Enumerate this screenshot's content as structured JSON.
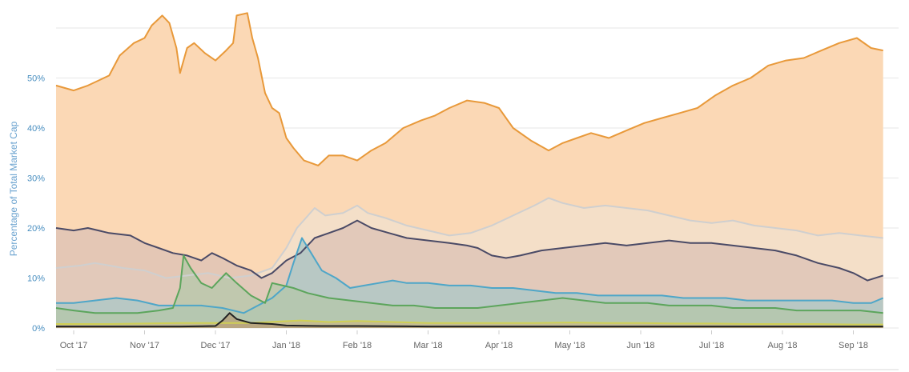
{
  "chart_data": {
    "type": "area",
    "title": "",
    "xlabel": "",
    "ylabel": "Percentage of Total Market Cap",
    "ylim": [
      0,
      62
    ],
    "grid": true,
    "legend": "none",
    "x_ticks": [
      "Oct '17",
      "Nov '17",
      "Dec '17",
      "Jan '18",
      "Feb '18",
      "Mar '18",
      "Apr '18",
      "May '18",
      "Jun '18",
      "Jul '18",
      "Aug '18",
      "Sep '18"
    ],
    "y_ticks": [
      {
        "value": 0,
        "label": "0%"
      },
      {
        "value": 10,
        "label": "10%"
      },
      {
        "value": 20,
        "label": "20%"
      },
      {
        "value": 30,
        "label": "30%"
      },
      {
        "value": 40,
        "label": "40%"
      },
      {
        "value": 50,
        "label": "50%"
      }
    ],
    "x_index_range": [
      0,
      12
    ],
    "series": [
      {
        "color": "#e8993a",
        "fill": "#fbd8b5",
        "points": [
          [
            -0.25,
            48.5
          ],
          [
            0.0,
            47.5
          ],
          [
            0.2,
            48.5
          ],
          [
            0.5,
            50.5
          ],
          [
            0.65,
            54.5
          ],
          [
            0.85,
            57.0
          ],
          [
            1.0,
            58.0
          ],
          [
            1.1,
            60.5
          ],
          [
            1.25,
            62.5
          ],
          [
            1.35,
            61.0
          ],
          [
            1.45,
            56.0
          ],
          [
            1.5,
            51.0
          ],
          [
            1.6,
            56.0
          ],
          [
            1.7,
            57.0
          ],
          [
            1.85,
            55.0
          ],
          [
            2.0,
            53.5
          ],
          [
            2.15,
            55.5
          ],
          [
            2.25,
            57.0
          ],
          [
            2.3,
            62.5
          ],
          [
            2.45,
            63.0
          ],
          [
            2.52,
            58.0
          ],
          [
            2.6,
            54.0
          ],
          [
            2.7,
            47.0
          ],
          [
            2.8,
            44.0
          ],
          [
            2.9,
            43.0
          ],
          [
            3.0,
            38.0
          ],
          [
            3.1,
            36.0
          ],
          [
            3.25,
            33.5
          ],
          [
            3.45,
            32.5
          ],
          [
            3.6,
            34.5
          ],
          [
            3.8,
            34.5
          ],
          [
            4.0,
            33.5
          ],
          [
            4.2,
            35.5
          ],
          [
            4.4,
            37.0
          ],
          [
            4.65,
            40.0
          ],
          [
            4.9,
            41.5
          ],
          [
            5.1,
            42.5
          ],
          [
            5.3,
            44.0
          ],
          [
            5.55,
            45.5
          ],
          [
            5.8,
            45.0
          ],
          [
            6.0,
            44.0
          ],
          [
            6.2,
            40.0
          ],
          [
            6.45,
            37.5
          ],
          [
            6.7,
            35.5
          ],
          [
            6.9,
            37.0
          ],
          [
            7.1,
            38.0
          ],
          [
            7.3,
            39.0
          ],
          [
            7.55,
            38.0
          ],
          [
            7.8,
            39.5
          ],
          [
            8.05,
            41.0
          ],
          [
            8.3,
            42.0
          ],
          [
            8.55,
            43.0
          ],
          [
            8.8,
            44.0
          ],
          [
            9.05,
            46.5
          ],
          [
            9.3,
            48.5
          ],
          [
            9.55,
            50.0
          ],
          [
            9.8,
            52.5
          ],
          [
            10.05,
            53.5
          ],
          [
            10.3,
            54.0
          ],
          [
            10.55,
            55.5
          ],
          [
            10.8,
            57.0
          ],
          [
            11.05,
            58.0
          ],
          [
            11.25,
            56.0
          ],
          [
            11.42,
            55.5
          ]
        ]
      },
      {
        "color": "#cfcfcf",
        "fill": "#f1e1cf",
        "points": [
          [
            -0.25,
            12.0
          ],
          [
            0.1,
            12.5
          ],
          [
            0.3,
            13.0
          ],
          [
            0.5,
            12.5
          ],
          [
            0.7,
            12.0
          ],
          [
            1.0,
            11.5
          ],
          [
            1.3,
            10.0
          ],
          [
            1.6,
            10.5
          ],
          [
            1.9,
            11.0
          ],
          [
            2.2,
            10.0
          ],
          [
            2.5,
            10.5
          ],
          [
            2.8,
            12.0
          ],
          [
            3.0,
            16.0
          ],
          [
            3.15,
            20.0
          ],
          [
            3.4,
            24.0
          ],
          [
            3.55,
            22.5
          ],
          [
            3.8,
            23.0
          ],
          [
            4.0,
            24.5
          ],
          [
            4.15,
            23.0
          ],
          [
            4.4,
            22.0
          ],
          [
            4.7,
            20.5
          ],
          [
            5.0,
            19.5
          ],
          [
            5.3,
            18.5
          ],
          [
            5.6,
            19.0
          ],
          [
            5.9,
            20.5
          ],
          [
            6.2,
            22.5
          ],
          [
            6.5,
            24.5
          ],
          [
            6.7,
            26.0
          ],
          [
            6.9,
            25.0
          ],
          [
            7.2,
            24.0
          ],
          [
            7.5,
            24.5
          ],
          [
            7.8,
            24.0
          ],
          [
            8.1,
            23.5
          ],
          [
            8.4,
            22.5
          ],
          [
            8.7,
            21.5
          ],
          [
            9.0,
            21.0
          ],
          [
            9.3,
            21.5
          ],
          [
            9.6,
            20.5
          ],
          [
            9.9,
            20.0
          ],
          [
            10.2,
            19.5
          ],
          [
            10.5,
            18.5
          ],
          [
            10.8,
            19.0
          ],
          [
            11.1,
            18.5
          ],
          [
            11.42,
            18.0
          ]
        ]
      },
      {
        "color": "#4a4a66",
        "fill": "#dcc1b6",
        "points": [
          [
            -0.25,
            20.0
          ],
          [
            0.0,
            19.5
          ],
          [
            0.2,
            20.0
          ],
          [
            0.5,
            19.0
          ],
          [
            0.8,
            18.5
          ],
          [
            1.0,
            17.0
          ],
          [
            1.2,
            16.0
          ],
          [
            1.4,
            15.0
          ],
          [
            1.6,
            14.5
          ],
          [
            1.8,
            13.5
          ],
          [
            1.95,
            15.0
          ],
          [
            2.1,
            14.0
          ],
          [
            2.3,
            12.5
          ],
          [
            2.5,
            11.5
          ],
          [
            2.65,
            10.0
          ],
          [
            2.8,
            11.0
          ],
          [
            3.0,
            13.5
          ],
          [
            3.2,
            15.0
          ],
          [
            3.4,
            18.0
          ],
          [
            3.6,
            19.0
          ],
          [
            3.8,
            20.0
          ],
          [
            4.0,
            21.5
          ],
          [
            4.2,
            20.0
          ],
          [
            4.45,
            19.0
          ],
          [
            4.7,
            18.0
          ],
          [
            5.0,
            17.5
          ],
          [
            5.3,
            17.0
          ],
          [
            5.55,
            16.5
          ],
          [
            5.7,
            16.0
          ],
          [
            5.9,
            14.5
          ],
          [
            6.1,
            14.0
          ],
          [
            6.3,
            14.5
          ],
          [
            6.6,
            15.5
          ],
          [
            6.9,
            16.0
          ],
          [
            7.2,
            16.5
          ],
          [
            7.5,
            17.0
          ],
          [
            7.8,
            16.5
          ],
          [
            8.1,
            17.0
          ],
          [
            8.4,
            17.5
          ],
          [
            8.7,
            17.0
          ],
          [
            9.0,
            17.0
          ],
          [
            9.3,
            16.5
          ],
          [
            9.6,
            16.0
          ],
          [
            9.9,
            15.5
          ],
          [
            10.2,
            14.5
          ],
          [
            10.5,
            13.0
          ],
          [
            10.8,
            12.0
          ],
          [
            11.0,
            11.0
          ],
          [
            11.2,
            9.5
          ],
          [
            11.42,
            10.5
          ]
        ]
      },
      {
        "color": "#4ea6c8",
        "fill": "#a9c7c7",
        "points": [
          [
            -0.25,
            5.0
          ],
          [
            0.0,
            5.0
          ],
          [
            0.3,
            5.5
          ],
          [
            0.6,
            6.0
          ],
          [
            0.9,
            5.5
          ],
          [
            1.2,
            4.5
          ],
          [
            1.5,
            4.5
          ],
          [
            1.8,
            4.5
          ],
          [
            2.1,
            4.0
          ],
          [
            2.4,
            3.0
          ],
          [
            2.6,
            4.5
          ],
          [
            2.8,
            6.0
          ],
          [
            3.0,
            8.5
          ],
          [
            3.1,
            13.0
          ],
          [
            3.22,
            18.0
          ],
          [
            3.35,
            15.0
          ],
          [
            3.5,
            11.5
          ],
          [
            3.7,
            10.0
          ],
          [
            3.9,
            8.0
          ],
          [
            4.1,
            8.5
          ],
          [
            4.3,
            9.0
          ],
          [
            4.5,
            9.5
          ],
          [
            4.7,
            9.0
          ],
          [
            5.0,
            9.0
          ],
          [
            5.3,
            8.5
          ],
          [
            5.6,
            8.5
          ],
          [
            5.9,
            8.0
          ],
          [
            6.2,
            8.0
          ],
          [
            6.5,
            7.5
          ],
          [
            6.8,
            7.0
          ],
          [
            7.1,
            7.0
          ],
          [
            7.4,
            6.5
          ],
          [
            7.7,
            6.5
          ],
          [
            8.0,
            6.5
          ],
          [
            8.3,
            6.5
          ],
          [
            8.6,
            6.0
          ],
          [
            8.9,
            6.0
          ],
          [
            9.2,
            6.0
          ],
          [
            9.5,
            5.5
          ],
          [
            9.8,
            5.5
          ],
          [
            10.1,
            5.5
          ],
          [
            10.4,
            5.5
          ],
          [
            10.7,
            5.5
          ],
          [
            11.0,
            5.0
          ],
          [
            11.25,
            5.0
          ],
          [
            11.42,
            6.0
          ]
        ]
      },
      {
        "color": "#5ca55c",
        "fill": "#b4c7a9",
        "points": [
          [
            -0.25,
            4.0
          ],
          [
            0.0,
            3.5
          ],
          [
            0.3,
            3.0
          ],
          [
            0.6,
            3.0
          ],
          [
            0.9,
            3.0
          ],
          [
            1.2,
            3.5
          ],
          [
            1.4,
            4.0
          ],
          [
            1.5,
            8.0
          ],
          [
            1.55,
            14.5
          ],
          [
            1.65,
            12.0
          ],
          [
            1.8,
            9.0
          ],
          [
            1.95,
            8.0
          ],
          [
            2.05,
            9.5
          ],
          [
            2.15,
            11.0
          ],
          [
            2.3,
            9.0
          ],
          [
            2.5,
            6.5
          ],
          [
            2.7,
            5.0
          ],
          [
            2.8,
            9.0
          ],
          [
            2.95,
            8.5
          ],
          [
            3.1,
            8.0
          ],
          [
            3.3,
            7.0
          ],
          [
            3.6,
            6.0
          ],
          [
            3.9,
            5.5
          ],
          [
            4.2,
            5.0
          ],
          [
            4.5,
            4.5
          ],
          [
            4.8,
            4.5
          ],
          [
            5.1,
            4.0
          ],
          [
            5.4,
            4.0
          ],
          [
            5.7,
            4.0
          ],
          [
            6.0,
            4.5
          ],
          [
            6.3,
            5.0
          ],
          [
            6.6,
            5.5
          ],
          [
            6.9,
            6.0
          ],
          [
            7.2,
            5.5
          ],
          [
            7.5,
            5.0
          ],
          [
            7.8,
            5.0
          ],
          [
            8.1,
            5.0
          ],
          [
            8.4,
            4.5
          ],
          [
            8.7,
            4.5
          ],
          [
            9.0,
            4.5
          ],
          [
            9.3,
            4.0
          ],
          [
            9.6,
            4.0
          ],
          [
            9.9,
            4.0
          ],
          [
            10.2,
            3.5
          ],
          [
            10.5,
            3.5
          ],
          [
            10.8,
            3.5
          ],
          [
            11.1,
            3.5
          ],
          [
            11.42,
            3.0
          ]
        ]
      },
      {
        "color": "#cfcf55",
        "fill": "#c8b88a",
        "points": [
          [
            -0.25,
            0.8
          ],
          [
            0.0,
            0.8
          ],
          [
            0.5,
            0.8
          ],
          [
            1.0,
            0.9
          ],
          [
            1.5,
            1.0
          ],
          [
            2.0,
            1.0
          ],
          [
            2.5,
            1.0
          ],
          [
            2.9,
            1.3
          ],
          [
            3.2,
            1.5
          ],
          [
            3.6,
            1.2
          ],
          [
            4.0,
            1.4
          ],
          [
            4.5,
            1.2
          ],
          [
            5.0,
            1.0
          ],
          [
            5.5,
            1.0
          ],
          [
            6.0,
            1.0
          ],
          [
            6.5,
            1.0
          ],
          [
            7.0,
            1.1
          ],
          [
            7.5,
            1.0
          ],
          [
            8.0,
            1.0
          ],
          [
            8.5,
            0.9
          ],
          [
            9.0,
            0.9
          ],
          [
            9.5,
            0.8
          ],
          [
            10.0,
            0.8
          ],
          [
            10.5,
            0.8
          ],
          [
            11.0,
            0.7
          ],
          [
            11.42,
            0.7
          ]
        ]
      },
      {
        "color": "#222222",
        "fill": "#b59f7a",
        "points": [
          [
            -0.25,
            0.3
          ],
          [
            0.5,
            0.3
          ],
          [
            1.0,
            0.3
          ],
          [
            1.5,
            0.3
          ],
          [
            2.0,
            0.4
          ],
          [
            2.1,
            1.5
          ],
          [
            2.2,
            3.0
          ],
          [
            2.3,
            1.8
          ],
          [
            2.5,
            1.0
          ],
          [
            2.8,
            0.8
          ],
          [
            3.0,
            0.5
          ],
          [
            3.5,
            0.4
          ],
          [
            4.0,
            0.4
          ],
          [
            5.0,
            0.3
          ],
          [
            6.0,
            0.3
          ],
          [
            7.0,
            0.3
          ],
          [
            8.0,
            0.3
          ],
          [
            9.0,
            0.3
          ],
          [
            10.0,
            0.3
          ],
          [
            11.0,
            0.3
          ],
          [
            11.42,
            0.3
          ]
        ]
      }
    ]
  }
}
